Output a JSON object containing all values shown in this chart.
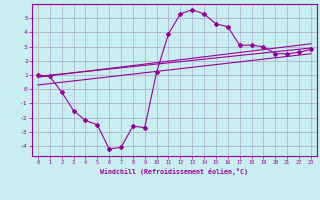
{
  "xlabel": "Windchill (Refroidissement éolien,°C)",
  "bg_color": "#c8eef0",
  "grid_color": "#aaaacc",
  "line_color": "#990099",
  "xlim": [
    -0.5,
    23.5
  ],
  "ylim": [
    -4.7,
    6.0
  ],
  "xticks": [
    0,
    1,
    2,
    3,
    4,
    5,
    6,
    7,
    8,
    9,
    10,
    11,
    12,
    13,
    14,
    15,
    16,
    17,
    18,
    19,
    20,
    21,
    22,
    23
  ],
  "yticks": [
    -4,
    -3,
    -2,
    -1,
    0,
    1,
    2,
    3,
    4,
    5
  ],
  "series1_x": [
    0,
    1,
    2,
    3,
    4,
    5,
    6,
    7,
    8,
    9,
    10,
    11,
    12,
    13,
    14,
    15,
    16,
    17,
    18,
    19,
    20,
    21,
    22,
    23
  ],
  "series1_y": [
    1.0,
    0.9,
    -0.2,
    -1.5,
    -2.2,
    -2.5,
    -4.2,
    -4.1,
    -2.6,
    -2.7,
    1.2,
    3.9,
    5.3,
    5.6,
    5.3,
    4.6,
    4.4,
    3.1,
    3.1,
    3.0,
    2.5,
    2.5,
    2.6,
    2.8
  ],
  "series2_x": [
    0,
    23
  ],
  "series2_y": [
    0.9,
    2.9
  ],
  "series3_x": [
    0,
    23
  ],
  "series3_y": [
    0.85,
    3.2
  ],
  "series4_x": [
    0,
    23
  ],
  "series4_y": [
    0.3,
    2.5
  ]
}
